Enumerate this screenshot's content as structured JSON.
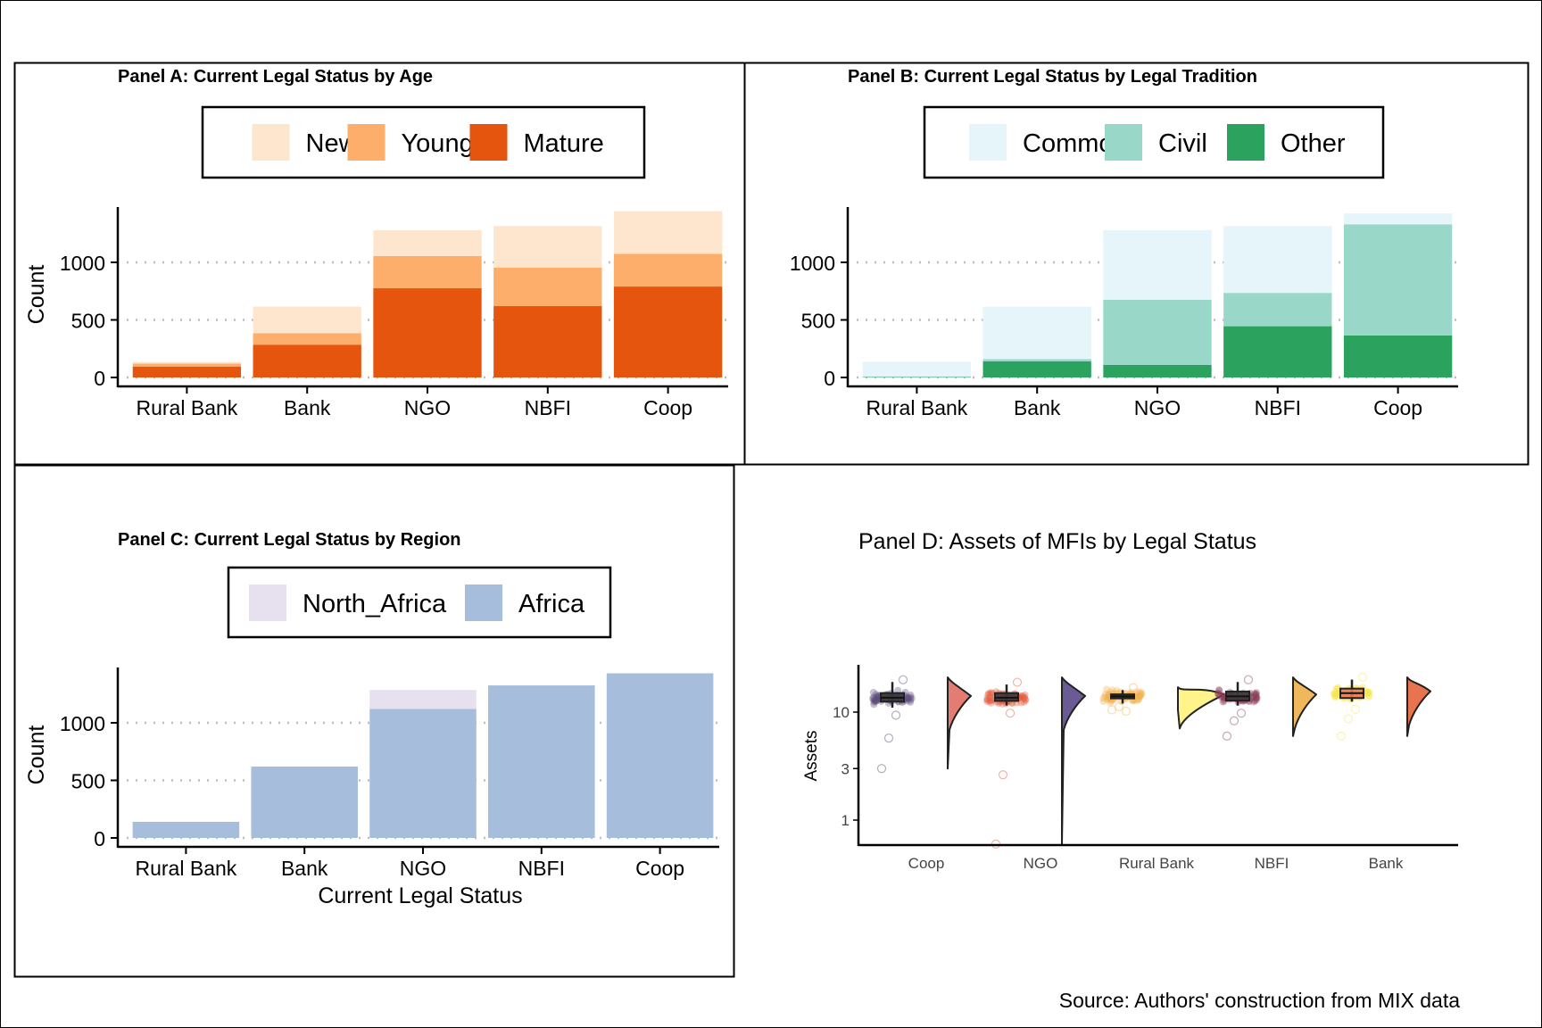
{
  "source_note": "Source: Authors' construction from MIX data",
  "chart_data": [
    {
      "type": "bar",
      "stacked": true,
      "title": "Panel A: Current Legal Status by Age",
      "xlabel": "",
      "ylabel": "Count",
      "ylim": [
        0,
        1450
      ],
      "yticks": [
        0,
        500,
        1000
      ],
      "grid": "horizontal dotted",
      "legend_position": "top",
      "categories": [
        "Rural Bank",
        "Bank",
        "NGO",
        "NBFI",
        "Coop"
      ],
      "series": [
        {
          "name": "Mature",
          "color": "#e6550d",
          "values": [
            95,
            285,
            775,
            620,
            790
          ]
        },
        {
          "name": "Young",
          "color": "#fdae6b",
          "values": [
            25,
            100,
            280,
            335,
            285
          ]
        },
        {
          "name": "New",
          "color": "#fee6ce",
          "values": [
            15,
            230,
            225,
            360,
            370
          ]
        }
      ],
      "legend_order": [
        "New",
        "Young",
        "Mature"
      ]
    },
    {
      "type": "bar",
      "stacked": true,
      "title": "Panel B: Current Legal Status by Legal Tradition",
      "xlabel": "",
      "ylabel": "",
      "ylim": [
        0,
        1450
      ],
      "yticks": [
        0,
        500,
        1000
      ],
      "grid": "horizontal dotted",
      "legend_position": "top",
      "categories": [
        "Rural Bank",
        "Bank",
        "NGO",
        "NBFI",
        "Coop"
      ],
      "series": [
        {
          "name": "Other",
          "color": "#2ca25f",
          "values": [
            5,
            140,
            110,
            445,
            365
          ]
        },
        {
          "name": "Civil",
          "color": "#99d8c9",
          "values": [
            0,
            20,
            565,
            290,
            965
          ]
        },
        {
          "name": "Common",
          "color": "#e5f5f9",
          "values": [
            130,
            455,
            605,
            580,
            95
          ]
        }
      ],
      "legend_order": [
        "Common",
        "Civil",
        "Other"
      ]
    },
    {
      "type": "bar",
      "stacked": true,
      "title": "Panel C: Current Legal Status by Region",
      "xlabel": "Current Legal Status",
      "ylabel": "Count",
      "ylim": [
        0,
        1450
      ],
      "yticks": [
        0,
        500,
        1000
      ],
      "grid": "horizontal dotted",
      "legend_position": "top",
      "categories": [
        "Rural Bank",
        "Bank",
        "NGO",
        "NBFI",
        "Coop"
      ],
      "series": [
        {
          "name": "Africa",
          "color": "#a6bddb",
          "values": [
            140,
            620,
            1120,
            1325,
            1430
          ]
        },
        {
          "name": "North_Africa",
          "color": "#e7e1ef",
          "values": [
            0,
            0,
            165,
            0,
            0
          ]
        }
      ],
      "legend_order": [
        "North_Africa",
        "Africa"
      ]
    },
    {
      "type": "raincloud",
      "title": "Panel D: Assets of MFIs by Legal Status",
      "xlabel": "",
      "ylabel": "Assets",
      "yscale": "log",
      "ylim": [
        0.6,
        25
      ],
      "yticks": [
        1,
        3,
        10
      ],
      "categories": [
        "Coop",
        "NGO",
        "Rural Bank",
        "NBFI",
        "Bank"
      ],
      "series": [
        {
          "name": "Coop",
          "color": "#5b4a7a",
          "box": {
            "min": 11,
            "q1": 12.5,
            "median": 13.6,
            "q3": 15,
            "max": 19
          },
          "range": [
            3,
            21
          ]
        },
        {
          "name": "NGO",
          "color": "#e1583b",
          "box": {
            "min": 11.5,
            "q1": 12.7,
            "median": 13.6,
            "q3": 15,
            "max": 18
          },
          "range": [
            0.6,
            21
          ]
        },
        {
          "name": "Rural Bank",
          "color": "#f2b34d",
          "box": {
            "min": 12,
            "q1": 13.4,
            "median": 14,
            "q3": 14.6,
            "max": 16
          },
          "range": [
            10.5,
            17
          ]
        },
        {
          "name": "NBFI",
          "color": "#8a3b5a",
          "box": {
            "min": 11.5,
            "q1": 12.8,
            "median": 14,
            "q3": 15.5,
            "max": 19
          },
          "range": [
            6,
            21
          ]
        },
        {
          "name": "Bank",
          "color": "#f7e44a",
          "box": {
            "min": 12.5,
            "q1": 13.5,
            "median": 15,
            "q3": 16.5,
            "max": 20
          },
          "range": [
            6,
            21
          ]
        }
      ]
    }
  ]
}
